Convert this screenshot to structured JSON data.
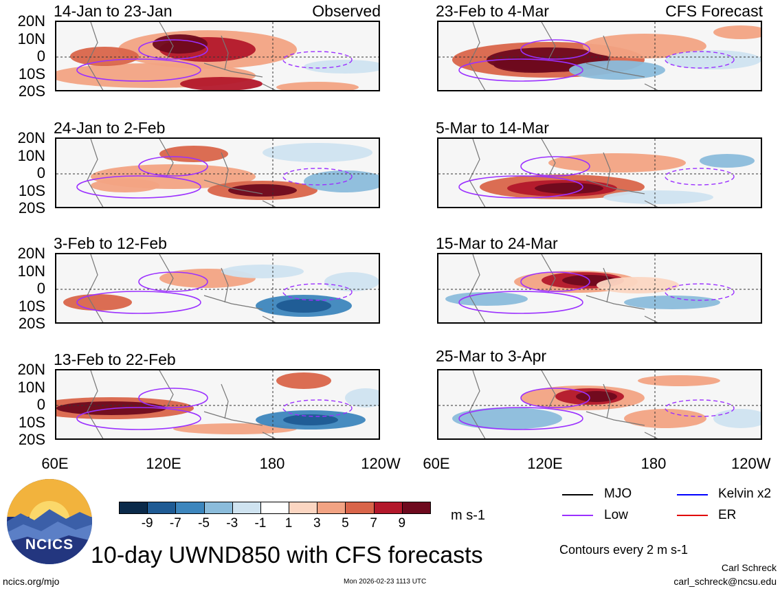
{
  "observed_label": "Observed",
  "forecast_label": "CFS Forecast",
  "lat_labels": [
    "20N",
    "10N",
    "0",
    "10S",
    "20S"
  ],
  "lon_labels": [
    "60E",
    "120E",
    "180",
    "120W"
  ],
  "panels_left": [
    {
      "title": "14-Jan to 23-Jan"
    },
    {
      "title": "24-Jan to 2-Feb"
    },
    {
      "title": "3-Feb to 12-Feb"
    },
    {
      "title": "13-Feb to 22-Feb"
    }
  ],
  "panels_right": [
    {
      "title": "23-Feb to 4-Mar"
    },
    {
      "title": "5-Mar to 14-Mar"
    },
    {
      "title": "15-Mar to 24-Mar"
    },
    {
      "title": "25-Mar to 3-Apr"
    }
  ],
  "colorbar": {
    "ticks": [
      "-9",
      "-7",
      "-5",
      "-3",
      "-1",
      "1",
      "3",
      "5",
      "7",
      "9"
    ],
    "colors": [
      "#0b2a4a",
      "#1f5b94",
      "#3d86bd",
      "#8bbcdb",
      "#cfe3f0",
      "#ffffff",
      "#fbd6c2",
      "#f2a383",
      "#d9654a",
      "#b3182b",
      "#6e0a1e"
    ],
    "units": "m s-1"
  },
  "legend": {
    "mjo": "MJO",
    "low": "Low",
    "kelvin": "Kelvin x2",
    "er": "ER",
    "mjo_color": "#000000",
    "low_color": "#9b30ff",
    "kelvin_color": "#0000ff",
    "er_color": "#e00000"
  },
  "contours_note": "Contours every 2 m s-1",
  "main_title": "10-day UWND850 with CFS forecasts",
  "logo_text": "NCICS",
  "website": "ncics.org/mjo",
  "timestamp": "Mon 2026-02-23 1113 UTC",
  "author": "Carl Schreck",
  "email": "carl_schreck@ncsu.edu"
}
